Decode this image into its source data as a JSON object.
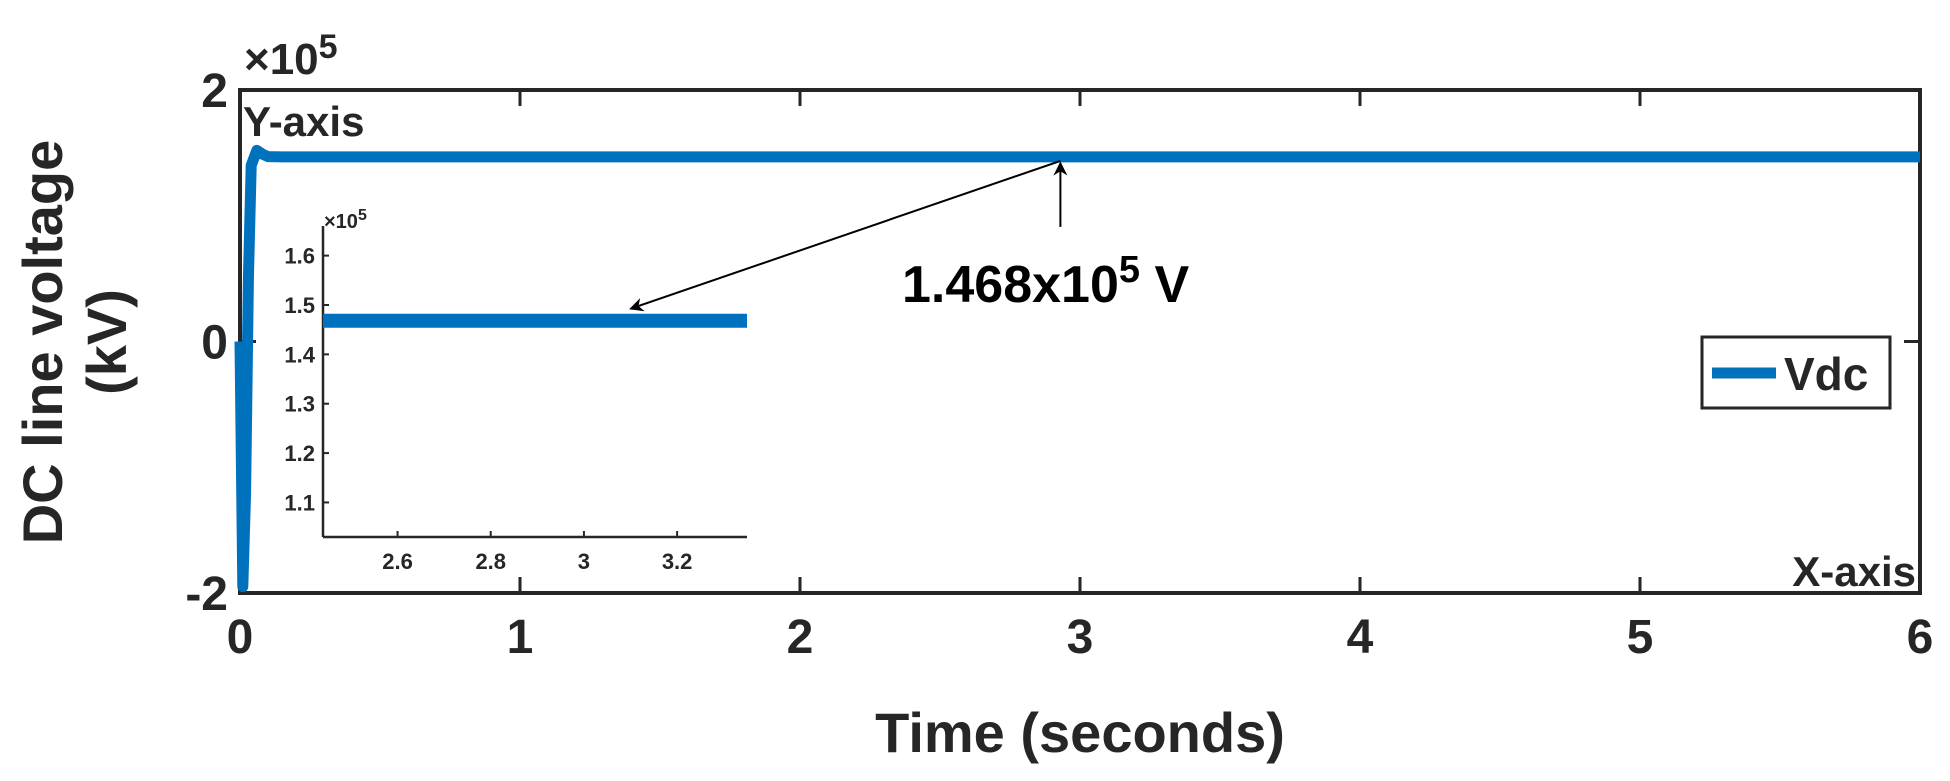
{
  "chart_data": [
    {
      "type": "line",
      "role": "main",
      "xlabel": "Time (seconds)",
      "ylabel_line1": "DC line voltage",
      "ylabel_line2": "(kV)",
      "xlim": [
        0,
        6
      ],
      "ylim": [
        -2,
        2
      ],
      "xticks": [
        0,
        1,
        2,
        3,
        4,
        5,
        6
      ],
      "yticks": [
        -2,
        0,
        2
      ],
      "y_exponent": "×10",
      "y_exponent_power": "5",
      "corner_labels": {
        "y_axis": "Y-axis",
        "x_axis": "X-axis"
      },
      "series": [
        {
          "name": "Vdc",
          "color": "#0072BD",
          "x": [
            0,
            0.01,
            0.02,
            0.03,
            0.04,
            0.06,
            0.08,
            0.1,
            0.15,
            0.2,
            0.5,
            1,
            2,
            3,
            4,
            5,
            6
          ],
          "y": [
            0,
            -1.95,
            -1.2,
            0.5,
            1.4,
            1.52,
            1.49,
            1.47,
            1.468,
            1.468,
            1.468,
            1.468,
            1.468,
            1.468,
            1.468,
            1.468,
            1.468
          ]
        }
      ],
      "legend": {
        "position": "right",
        "entries": [
          "Vdc"
        ]
      },
      "annotation": {
        "text_main": "1.468x10",
        "text_power": "5",
        "text_unit": " V",
        "x": 2.93,
        "y": 1.468
      }
    },
    {
      "type": "line",
      "role": "inset",
      "xlim": [
        2.44,
        3.35
      ],
      "ylim": [
        1.03,
        1.66
      ],
      "xticks": [
        "2.6",
        "2.8",
        "3",
        "3.2"
      ],
      "xtick_values": [
        2.6,
        2.8,
        3.0,
        3.2
      ],
      "yticks": [
        "1.1",
        "1.2",
        "1.3",
        "1.4",
        "1.5",
        "1.6"
      ],
      "ytick_values": [
        1.1,
        1.2,
        1.3,
        1.4,
        1.5,
        1.6
      ],
      "y_exponent": "×10",
      "y_exponent_power": "5",
      "series": [
        {
          "name": "Vdc",
          "color": "#0072BD",
          "x": [
            2.44,
            3.35
          ],
          "y": [
            1.468,
            1.468
          ]
        }
      ]
    }
  ]
}
